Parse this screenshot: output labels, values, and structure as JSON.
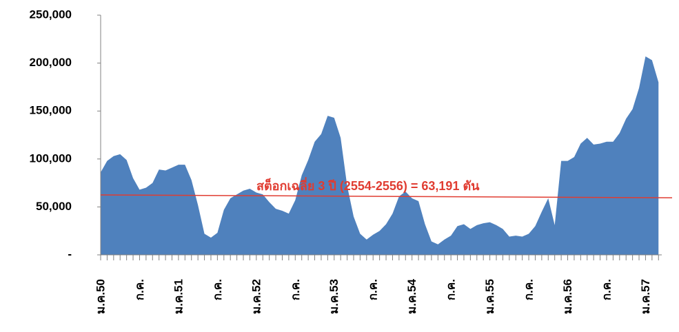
{
  "chart_data": {
    "type": "area",
    "categories": [
      "ม.ค.50",
      null,
      null,
      null,
      null,
      null,
      "ก.ค.",
      null,
      null,
      null,
      null,
      null,
      "ม.ค.51",
      null,
      null,
      null,
      null,
      null,
      "ก.ค.",
      null,
      null,
      null,
      null,
      null,
      "ม.ค.52",
      null,
      null,
      null,
      null,
      null,
      "ก.ค.",
      null,
      null,
      null,
      null,
      null,
      "ม.ค.53",
      null,
      null,
      null,
      null,
      null,
      "ก.ค.",
      null,
      null,
      null,
      null,
      null,
      "ม.ค.54",
      null,
      null,
      null,
      null,
      null,
      "ก.ค.",
      null,
      null,
      null,
      null,
      null,
      "ม.ค.55",
      null,
      null,
      null,
      null,
      null,
      "ก.ค.",
      null,
      null,
      null,
      null,
      null,
      "ม.ค.56",
      null,
      null,
      null,
      null,
      null,
      "ก.ค.",
      null,
      null,
      null,
      null,
      null,
      "ม.ค.57",
      null,
      null
    ],
    "values": [
      86000,
      98000,
      103000,
      105000,
      99000,
      80000,
      68000,
      70000,
      75000,
      89000,
      88000,
      91000,
      94000,
      94000,
      78000,
      52000,
      22000,
      18000,
      23000,
      47000,
      59000,
      63000,
      67000,
      69000,
      65000,
      63000,
      55000,
      48000,
      46000,
      43000,
      57000,
      83000,
      99000,
      118000,
      126000,
      145000,
      143000,
      122000,
      72000,
      40000,
      22000,
      16000,
      21000,
      25000,
      32000,
      43000,
      61000,
      66000,
      59000,
      56000,
      32000,
      14000,
      11000,
      16000,
      20000,
      30000,
      32000,
      27000,
      31000,
      33000,
      34000,
      31000,
      27000,
      19000,
      20000,
      19000,
      22000,
      30000,
      45000,
      59000,
      31000,
      98000,
      98000,
      102000,
      116000,
      122000,
      115000,
      116000,
      118000,
      118000,
      127000,
      142000,
      152000,
      174000,
      207000,
      203000,
      180000
    ],
    "color": "#4f81bd",
    "ylim": [
      0,
      250000
    ],
    "yticks": [
      {
        "value": 0,
        "label": "-"
      },
      {
        "value": 50000,
        "label": "50,000"
      },
      {
        "value": 100000,
        "label": "100,000"
      },
      {
        "value": 150000,
        "label": "150,000"
      },
      {
        "value": 200000,
        "label": "200,000"
      },
      {
        "value": 250000,
        "label": "250,000"
      }
    ],
    "reference_line": {
      "label": "สต็อกเฉลี่ย 3 ปี (2554-2556) = 63,191 ตัน",
      "values": [
        62500,
        59500
      ],
      "color": "#e03c31"
    },
    "grid": false
  }
}
